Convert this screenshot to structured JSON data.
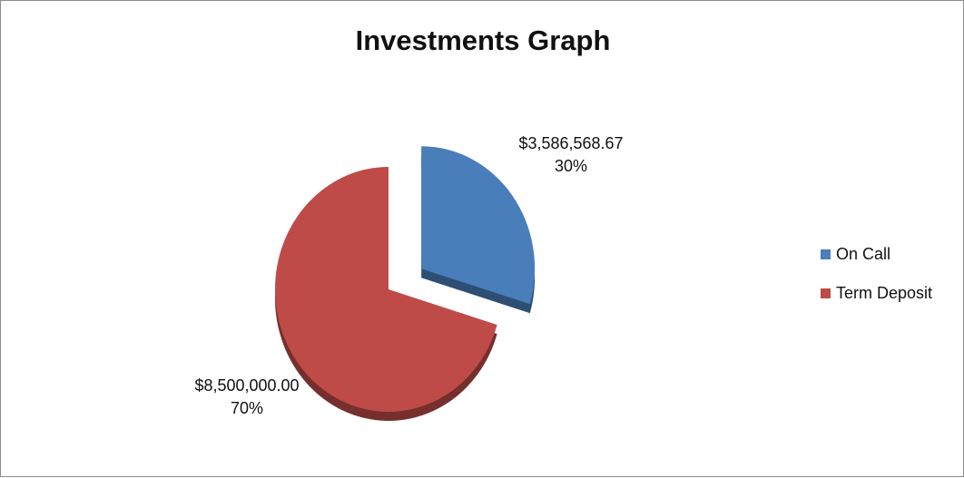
{
  "chart_data": {
    "type": "pie",
    "title": "Investments Graph",
    "slices": [
      {
        "name": "On Call",
        "value": 3586568.67,
        "value_label": "$3,586,568.67",
        "percent_label": "30%",
        "color": "#4a7ebb",
        "exploded": true
      },
      {
        "name": "Term Deposit",
        "value": 8500000.0,
        "value_label": "$8,500,000.00",
        "percent_label": "70%",
        "color": "#be4b48",
        "exploded": false
      }
    ],
    "style": "3d",
    "legend_position": "right"
  }
}
